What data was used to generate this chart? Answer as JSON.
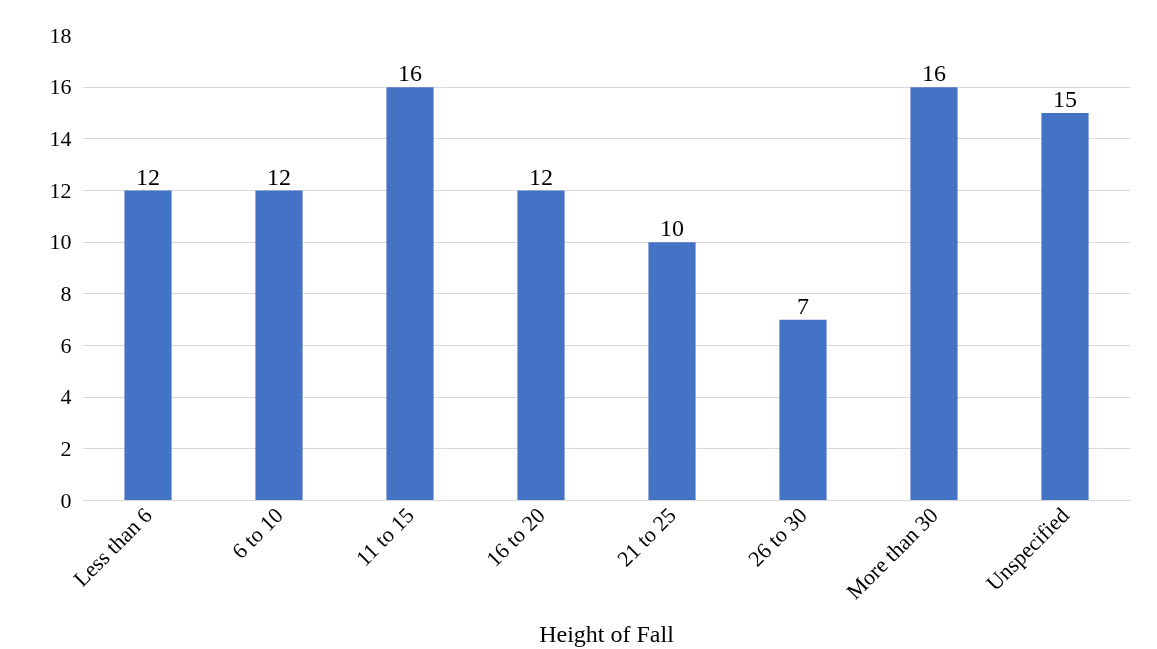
{
  "chart_data": {
    "type": "bar",
    "xlabel": "Height of Fall",
    "categories": [
      "Less than 6",
      "6 to 10",
      "11 to 15",
      "16 to 20",
      "21 to 25",
      "26 to 30",
      "More than 30",
      "Unspecified"
    ],
    "values": [
      12,
      12,
      16,
      12,
      10,
      7,
      16,
      15
    ],
    "color": "#4472c4",
    "ylim": [
      0,
      18
    ],
    "yticks": [
      0,
      2,
      4,
      6,
      8,
      10,
      12,
      14,
      16,
      18
    ],
    "grid": "y",
    "data_labels": true
  }
}
